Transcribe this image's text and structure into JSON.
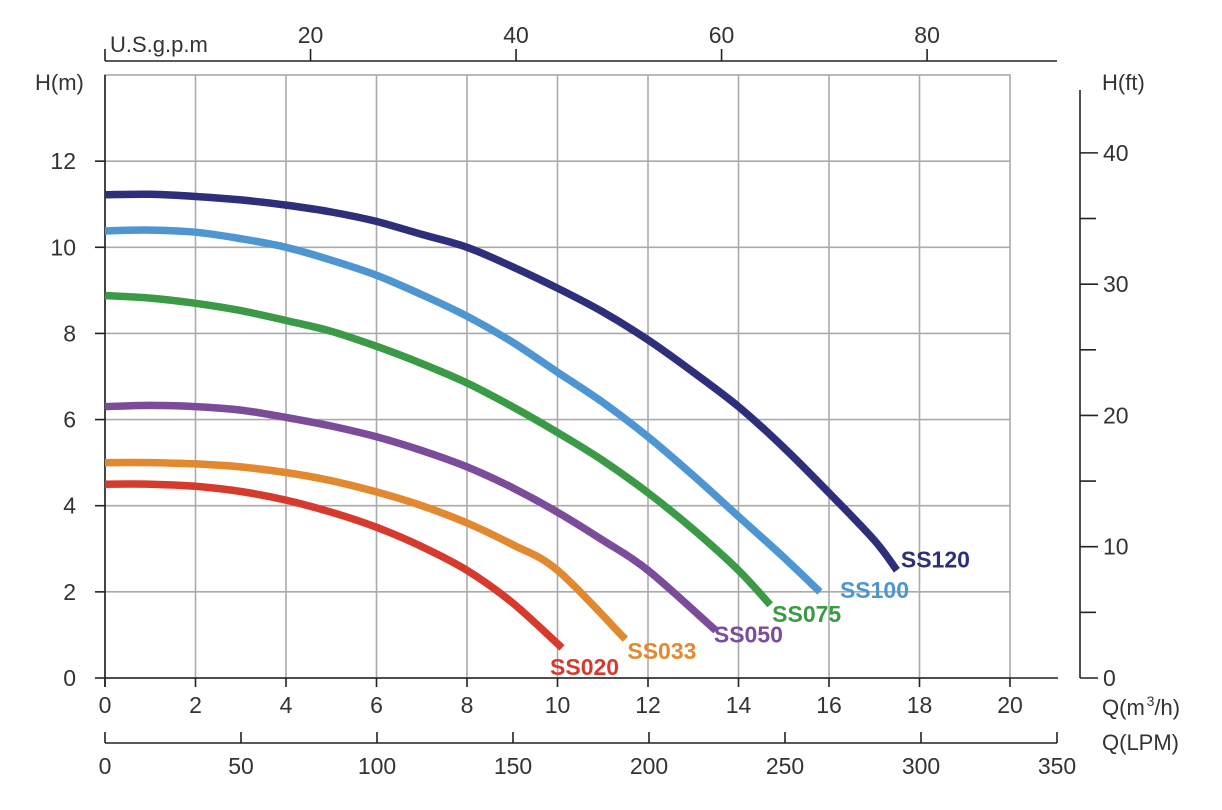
{
  "chart_data": {
    "type": "line",
    "title": "",
    "xlabel": "Q(m³/h)",
    "ylabel": "H(m)",
    "xlim": [
      0,
      20
    ],
    "ylim": [
      0,
      14
    ],
    "grid": true,
    "legend": "inline labels at curve ends",
    "x_ticks": [
      "0",
      "2",
      "4",
      "6",
      "8",
      "10",
      "12",
      "14",
      "16",
      "18",
      "20"
    ],
    "y_ticks": [
      "0",
      "2",
      "4",
      "6",
      "8",
      "10",
      "12"
    ],
    "secondary_x_bottom": {
      "label": "Q(LPM)",
      "range": [
        0,
        350
      ],
      "ticks": [
        "0",
        "50",
        "100",
        "150",
        "200",
        "250",
        "300",
        "350"
      ]
    },
    "secondary_x_top": {
      "label": "U.S.g.p.m",
      "ticks": [
        "20",
        "40",
        "60",
        "80"
      ]
    },
    "secondary_y_right": {
      "label": "H(ft)",
      "ticks": [
        "0",
        "10",
        "20",
        "30",
        "40"
      ]
    },
    "series": [
      {
        "name": "SS020",
        "color": "#d63a2c",
        "x": [
          0,
          1,
          2,
          3,
          4,
          5,
          6,
          7,
          8,
          9,
          10.1
        ],
        "y": [
          4.5,
          4.5,
          4.45,
          4.33,
          4.13,
          3.85,
          3.5,
          3.05,
          2.5,
          1.75,
          0.7
        ]
      },
      {
        "name": "SS033",
        "color": "#e2892f",
        "x": [
          0,
          1,
          2,
          3,
          4,
          5,
          6,
          7,
          8,
          9,
          10,
          11.5
        ],
        "y": [
          5.0,
          5.0,
          4.97,
          4.9,
          4.77,
          4.58,
          4.32,
          4.0,
          3.6,
          3.1,
          2.5,
          0.9
        ]
      },
      {
        "name": "SS050",
        "color": "#7b4c9a",
        "x": [
          0,
          1,
          2,
          3,
          4,
          5,
          6,
          7,
          8,
          9,
          10,
          11,
          12,
          13.5
        ],
        "y": [
          6.3,
          6.33,
          6.3,
          6.22,
          6.05,
          5.85,
          5.6,
          5.28,
          4.9,
          4.42,
          3.85,
          3.2,
          2.5,
          1.1
        ]
      },
      {
        "name": "SS075",
        "color": "#3a9a45",
        "x": [
          0,
          1,
          2,
          3,
          4,
          5,
          6,
          7,
          8,
          9,
          10,
          11,
          12,
          13,
          14,
          14.7
        ],
        "y": [
          8.88,
          8.82,
          8.7,
          8.53,
          8.3,
          8.05,
          7.7,
          7.3,
          6.85,
          6.3,
          5.7,
          5.05,
          4.3,
          3.45,
          2.5,
          1.7
        ]
      },
      {
        "name": "SS100",
        "color": "#4e96d2",
        "x": [
          0,
          1,
          2,
          3,
          4,
          5,
          6,
          7,
          8,
          9,
          10,
          11,
          12,
          13,
          14,
          15,
          15.8
        ],
        "y": [
          10.38,
          10.4,
          10.35,
          10.2,
          10.0,
          9.7,
          9.35,
          8.9,
          8.4,
          7.8,
          7.1,
          6.4,
          5.6,
          4.7,
          3.75,
          2.8,
          2.0
        ]
      },
      {
        "name": "SS120",
        "color": "#2e2f7a",
        "x": [
          0,
          1,
          2,
          3,
          4,
          5,
          6,
          7,
          8,
          9,
          10,
          11,
          12,
          13,
          14,
          15,
          16,
          17,
          17.5
        ],
        "y": [
          11.22,
          11.23,
          11.18,
          11.1,
          10.98,
          10.82,
          10.6,
          10.3,
          10.0,
          9.55,
          9.05,
          8.5,
          7.85,
          7.1,
          6.3,
          5.35,
          4.3,
          3.2,
          2.5
        ]
      }
    ]
  }
}
